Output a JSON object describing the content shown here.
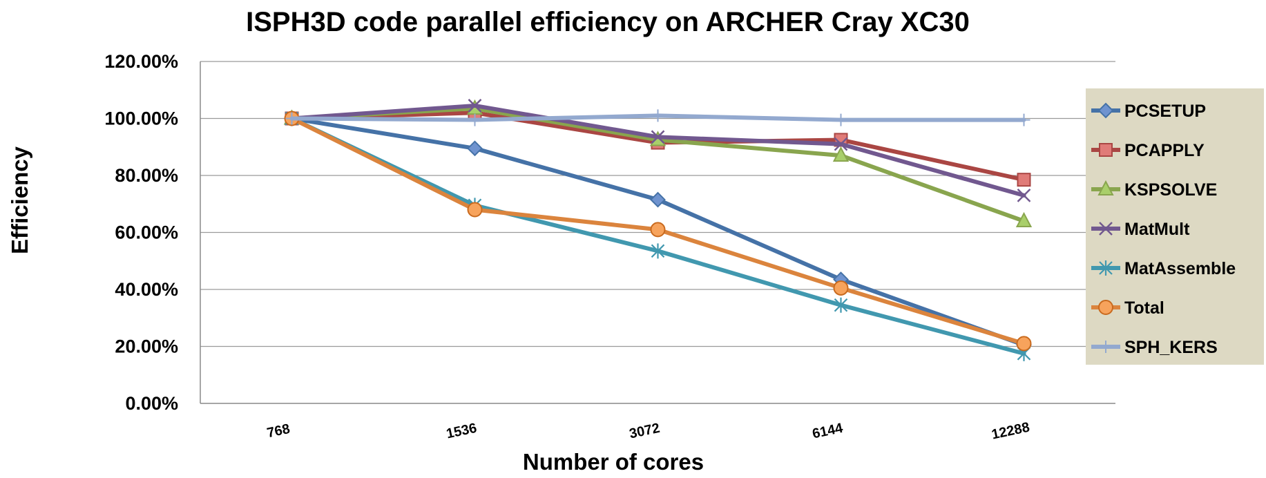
{
  "chart_data": {
    "type": "line",
    "title": "ISPH3D code parallel efficiency  on ARCHER Cray XC30",
    "xlabel": "Number of cores",
    "ylabel": "Efficiency",
    "categories": [
      "768",
      "1536",
      "3072",
      "6144",
      "12288"
    ],
    "ylim": [
      0,
      120
    ],
    "yticks": [
      "0.00%",
      "20.00%",
      "40.00%",
      "60.00%",
      "80.00%",
      "100.00%",
      "120.00%"
    ],
    "grid": true,
    "legend_position": "right",
    "series": [
      {
        "name": "PCSETUP",
        "values": [
          100,
          89.5,
          71.5,
          43.5,
          20.5
        ],
        "color": "#4572a7",
        "marker": "diamond"
      },
      {
        "name": "PCAPPLY",
        "values": [
          100,
          102,
          91.5,
          92.5,
          78.5
        ],
        "color": "#aa4643",
        "marker": "square"
      },
      {
        "name": "KSPSOLVE",
        "values": [
          100,
          103.5,
          92.5,
          87,
          64
        ],
        "color": "#89a54e",
        "marker": "triangle"
      },
      {
        "name": "MatMult",
        "values": [
          100,
          104.5,
          93.5,
          91,
          73
        ],
        "color": "#71588f",
        "marker": "x"
      },
      {
        "name": "MatAssemble",
        "values": [
          100,
          69.5,
          53.5,
          34.5,
          17.5
        ],
        "color": "#4198af",
        "marker": "star"
      },
      {
        "name": "Total",
        "values": [
          100,
          68,
          61,
          40.5,
          21
        ],
        "color": "#db843d",
        "marker": "circle"
      },
      {
        "name": "SPH_KERS",
        "values": [
          100,
          99.5,
          101,
          99.5,
          99.5
        ],
        "color": "#93a9cf",
        "marker": "plus"
      }
    ]
  }
}
